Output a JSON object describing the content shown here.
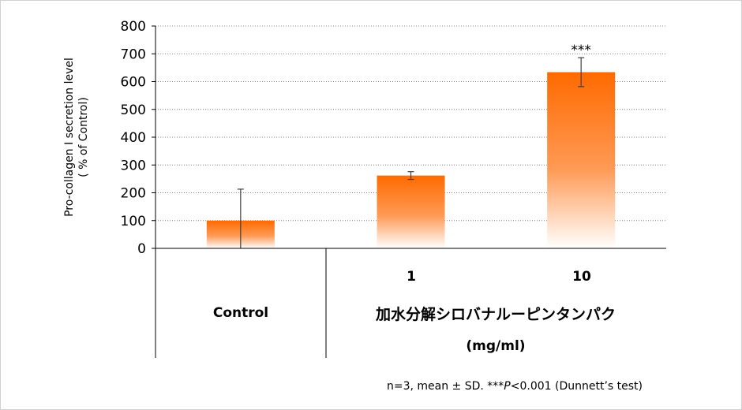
{
  "colors": {
    "bar_top": "#ff6a00",
    "bar_bottom": "#ffffff",
    "grid": "#808080",
    "axis": "#000000",
    "error_bar": "#404040"
  },
  "chart_data": {
    "type": "bar",
    "ylabel_line1": "Pro-collagen I secretion level",
    "ylabel_line2": "( % of Control)",
    "ylim": [
      0,
      800
    ],
    "yticks": [
      0,
      100,
      200,
      300,
      400,
      500,
      600,
      700,
      800
    ],
    "grid": true,
    "categories": [
      "Control",
      "1",
      "10"
    ],
    "values": [
      100,
      262,
      634
    ],
    "errors": [
      113,
      14,
      52
    ],
    "significance": [
      "",
      "",
      "***"
    ],
    "group_label_line1": "加水分解シロバナルーピンタンパク",
    "group_label_line2": "(mg/ml)"
  },
  "footnote": {
    "prefix": "n=3, mean ± SD. ***",
    "italic": "P",
    "suffix": "<0.001  (Dunnett’s test)"
  }
}
